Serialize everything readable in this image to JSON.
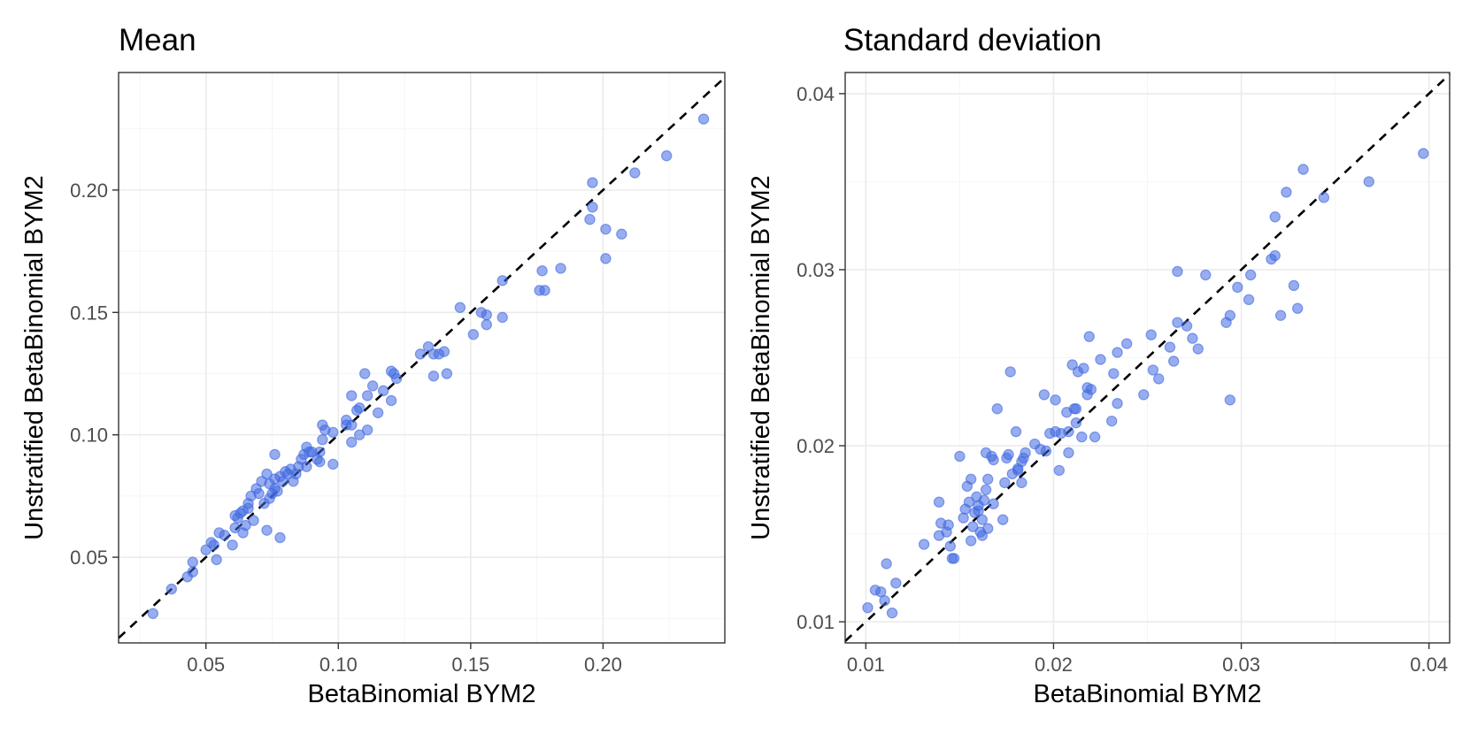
{
  "chart_data": [
    {
      "type": "scatter",
      "title": "Mean",
      "xlabel": "BetaBinomial BYM2",
      "ylabel": "Unstratified BetaBinomial BYM2",
      "xlim": [
        0.017,
        0.246
      ],
      "ylim": [
        0.015,
        0.248
      ],
      "xticks": [
        0.05,
        0.1,
        0.15,
        0.2
      ],
      "yticks": [
        0.05,
        0.1,
        0.15,
        0.2
      ],
      "xtick_labels": [
        "0.05",
        "0.10",
        "0.15",
        "0.20"
      ],
      "ytick_labels": [
        "0.05",
        "0.10",
        "0.15",
        "0.20"
      ],
      "grid": true,
      "reference_line": "y = x (dashed)",
      "point_color": "#4169E1",
      "points": [
        [
          0.03,
          0.027
        ],
        [
          0.037,
          0.037
        ],
        [
          0.043,
          0.042
        ],
        [
          0.045,
          0.044
        ],
        [
          0.045,
          0.048
        ],
        [
          0.05,
          0.053
        ],
        [
          0.052,
          0.056
        ],
        [
          0.053,
          0.055
        ],
        [
          0.054,
          0.049
        ],
        [
          0.055,
          0.06
        ],
        [
          0.057,
          0.059
        ],
        [
          0.06,
          0.055
        ],
        [
          0.061,
          0.062
        ],
        [
          0.061,
          0.067
        ],
        [
          0.062,
          0.066
        ],
        [
          0.063,
          0.068
        ],
        [
          0.064,
          0.06
        ],
        [
          0.064,
          0.069
        ],
        [
          0.065,
          0.063
        ],
        [
          0.066,
          0.07
        ],
        [
          0.066,
          0.072
        ],
        [
          0.067,
          0.075
        ],
        [
          0.068,
          0.065
        ],
        [
          0.069,
          0.078
        ],
        [
          0.07,
          0.076
        ],
        [
          0.071,
          0.081
        ],
        [
          0.072,
          0.072
        ],
        [
          0.073,
          0.061
        ],
        [
          0.073,
          0.084
        ],
        [
          0.074,
          0.08
        ],
        [
          0.074,
          0.074
        ],
        [
          0.075,
          0.076
        ],
        [
          0.076,
          0.082
        ],
        [
          0.076,
          0.092
        ],
        [
          0.076,
          0.078
        ],
        [
          0.077,
          0.077
        ],
        [
          0.078,
          0.058
        ],
        [
          0.078,
          0.083
        ],
        [
          0.079,
          0.081
        ],
        [
          0.08,
          0.085
        ],
        [
          0.081,
          0.084
        ],
        [
          0.082,
          0.086
        ],
        [
          0.083,
          0.081
        ],
        [
          0.084,
          0.084
        ],
        [
          0.085,
          0.087
        ],
        [
          0.086,
          0.09
        ],
        [
          0.087,
          0.092
        ],
        [
          0.088,
          0.087
        ],
        [
          0.088,
          0.095
        ],
        [
          0.089,
          0.093
        ],
        [
          0.09,
          0.093
        ],
        [
          0.092,
          0.09
        ],
        [
          0.093,
          0.093
        ],
        [
          0.093,
          0.089
        ],
        [
          0.094,
          0.098
        ],
        [
          0.094,
          0.104
        ],
        [
          0.095,
          0.102
        ],
        [
          0.098,
          0.088
        ],
        [
          0.098,
          0.101
        ],
        [
          0.103,
          0.104
        ],
        [
          0.103,
          0.106
        ],
        [
          0.105,
          0.104
        ],
        [
          0.105,
          0.097
        ],
        [
          0.105,
          0.116
        ],
        [
          0.107,
          0.11
        ],
        [
          0.108,
          0.111
        ],
        [
          0.108,
          0.1
        ],
        [
          0.11,
          0.125
        ],
        [
          0.111,
          0.116
        ],
        [
          0.111,
          0.102
        ],
        [
          0.113,
          0.12
        ],
        [
          0.115,
          0.109
        ],
        [
          0.117,
          0.118
        ],
        [
          0.12,
          0.126
        ],
        [
          0.12,
          0.114
        ],
        [
          0.121,
          0.125
        ],
        [
          0.122,
          0.123
        ],
        [
          0.131,
          0.133
        ],
        [
          0.134,
          0.136
        ],
        [
          0.136,
          0.124
        ],
        [
          0.136,
          0.133
        ],
        [
          0.138,
          0.133
        ],
        [
          0.14,
          0.134
        ],
        [
          0.141,
          0.125
        ],
        [
          0.146,
          0.152
        ],
        [
          0.151,
          0.141
        ],
        [
          0.154,
          0.15
        ],
        [
          0.156,
          0.149
        ],
        [
          0.156,
          0.145
        ],
        [
          0.162,
          0.148
        ],
        [
          0.162,
          0.163
        ],
        [
          0.176,
          0.159
        ],
        [
          0.177,
          0.167
        ],
        [
          0.178,
          0.159
        ],
        [
          0.184,
          0.168
        ],
        [
          0.195,
          0.188
        ],
        [
          0.196,
          0.193
        ],
        [
          0.196,
          0.203
        ],
        [
          0.201,
          0.184
        ],
        [
          0.201,
          0.172
        ],
        [
          0.207,
          0.182
        ],
        [
          0.212,
          0.207
        ],
        [
          0.224,
          0.214
        ],
        [
          0.238,
          0.229
        ]
      ]
    },
    {
      "type": "scatter",
      "title": "Standard deviation",
      "xlabel": "BetaBinomial BYM2",
      "ylabel": "Unstratified BetaBinomial BYM2",
      "xlim": [
        0.0089,
        0.0411
      ],
      "ylim": [
        0.0088,
        0.0412
      ],
      "xticks": [
        0.01,
        0.02,
        0.03,
        0.04
      ],
      "yticks": [
        0.01,
        0.02,
        0.03,
        0.04
      ],
      "xtick_labels": [
        "0.01",
        "0.02",
        "0.03",
        "0.04"
      ],
      "ytick_labels": [
        "0.01",
        "0.02",
        "0.03",
        "0.04"
      ],
      "grid": true,
      "reference_line": "y = x (dashed)",
      "point_color": "#4169E1",
      "points": [
        [
          0.0101,
          0.0108
        ],
        [
          0.0105,
          0.0118
        ],
        [
          0.0108,
          0.0117
        ],
        [
          0.011,
          0.0112
        ],
        [
          0.0111,
          0.0133
        ],
        [
          0.0114,
          0.0105
        ],
        [
          0.0116,
          0.0122
        ],
        [
          0.0131,
          0.0144
        ],
        [
          0.0139,
          0.0168
        ],
        [
          0.0139,
          0.0149
        ],
        [
          0.014,
          0.0156
        ],
        [
          0.0143,
          0.0151
        ],
        [
          0.0144,
          0.0155
        ],
        [
          0.0145,
          0.0143
        ],
        [
          0.0146,
          0.0136
        ],
        [
          0.0147,
          0.0136
        ],
        [
          0.015,
          0.0194
        ],
        [
          0.0152,
          0.0159
        ],
        [
          0.0153,
          0.0164
        ],
        [
          0.0154,
          0.0177
        ],
        [
          0.0155,
          0.0168
        ],
        [
          0.0156,
          0.0146
        ],
        [
          0.0156,
          0.0181
        ],
        [
          0.0157,
          0.0154
        ],
        [
          0.0158,
          0.0162
        ],
        [
          0.0159,
          0.0171
        ],
        [
          0.016,
          0.0166
        ],
        [
          0.016,
          0.0163
        ],
        [
          0.0161,
          0.0151
        ],
        [
          0.0162,
          0.0158
        ],
        [
          0.0162,
          0.0149
        ],
        [
          0.0163,
          0.0169
        ],
        [
          0.0164,
          0.0196
        ],
        [
          0.0164,
          0.0175
        ],
        [
          0.0165,
          0.0153
        ],
        [
          0.0165,
          0.0181
        ],
        [
          0.0167,
          0.0194
        ],
        [
          0.0168,
          0.0167
        ],
        [
          0.0168,
          0.0192
        ],
        [
          0.017,
          0.0221
        ],
        [
          0.0173,
          0.0158
        ],
        [
          0.0174,
          0.0179
        ],
        [
          0.0175,
          0.0193
        ],
        [
          0.0176,
          0.0195
        ],
        [
          0.0177,
          0.0242
        ],
        [
          0.0178,
          0.0184
        ],
        [
          0.018,
          0.0208
        ],
        [
          0.0181,
          0.0187
        ],
        [
          0.0181,
          0.0186
        ],
        [
          0.0183,
          0.0179
        ],
        [
          0.0183,
          0.0191
        ],
        [
          0.0184,
          0.0193
        ],
        [
          0.0185,
          0.0196
        ],
        [
          0.019,
          0.0201
        ],
        [
          0.0193,
          0.0198
        ],
        [
          0.0195,
          0.0229
        ],
        [
          0.0196,
          0.0197
        ],
        [
          0.0198,
          0.0207
        ],
        [
          0.0201,
          0.0226
        ],
        [
          0.0201,
          0.0208
        ],
        [
          0.0203,
          0.0186
        ],
        [
          0.0204,
          0.0207
        ],
        [
          0.0207,
          0.0219
        ],
        [
          0.0208,
          0.0196
        ],
        [
          0.0208,
          0.0208
        ],
        [
          0.021,
          0.0246
        ],
        [
          0.0211,
          0.0221
        ],
        [
          0.0212,
          0.0221
        ],
        [
          0.0212,
          0.0213
        ],
        [
          0.0213,
          0.0242
        ],
        [
          0.0215,
          0.0205
        ],
        [
          0.0216,
          0.0244
        ],
        [
          0.0218,
          0.0233
        ],
        [
          0.0218,
          0.0229
        ],
        [
          0.0219,
          0.0262
        ],
        [
          0.022,
          0.0232
        ],
        [
          0.0222,
          0.0205
        ],
        [
          0.0225,
          0.0249
        ],
        [
          0.0231,
          0.0214
        ],
        [
          0.0232,
          0.0241
        ],
        [
          0.0234,
          0.0253
        ],
        [
          0.0234,
          0.0224
        ],
        [
          0.0239,
          0.0258
        ],
        [
          0.0248,
          0.0229
        ],
        [
          0.0252,
          0.0263
        ],
        [
          0.0253,
          0.0243
        ],
        [
          0.0256,
          0.0238
        ],
        [
          0.0262,
          0.0256
        ],
        [
          0.0264,
          0.0248
        ],
        [
          0.0266,
          0.0299
        ],
        [
          0.0266,
          0.027
        ],
        [
          0.0271,
          0.0268
        ],
        [
          0.0274,
          0.0261
        ],
        [
          0.0277,
          0.0255
        ],
        [
          0.0281,
          0.0297
        ],
        [
          0.0292,
          0.027
        ],
        [
          0.0294,
          0.0226
        ],
        [
          0.0294,
          0.0274
        ],
        [
          0.0298,
          0.029
        ],
        [
          0.0304,
          0.0283
        ],
        [
          0.0305,
          0.0297
        ],
        [
          0.0316,
          0.0306
        ],
        [
          0.0318,
          0.0308
        ],
        [
          0.0318,
          0.033
        ],
        [
          0.0321,
          0.0274
        ],
        [
          0.0324,
          0.0344
        ],
        [
          0.0328,
          0.0291
        ],
        [
          0.033,
          0.0278
        ],
        [
          0.0333,
          0.0357
        ],
        [
          0.0344,
          0.0341
        ],
        [
          0.0368,
          0.035
        ],
        [
          0.0397,
          0.0366
        ]
      ]
    }
  ]
}
